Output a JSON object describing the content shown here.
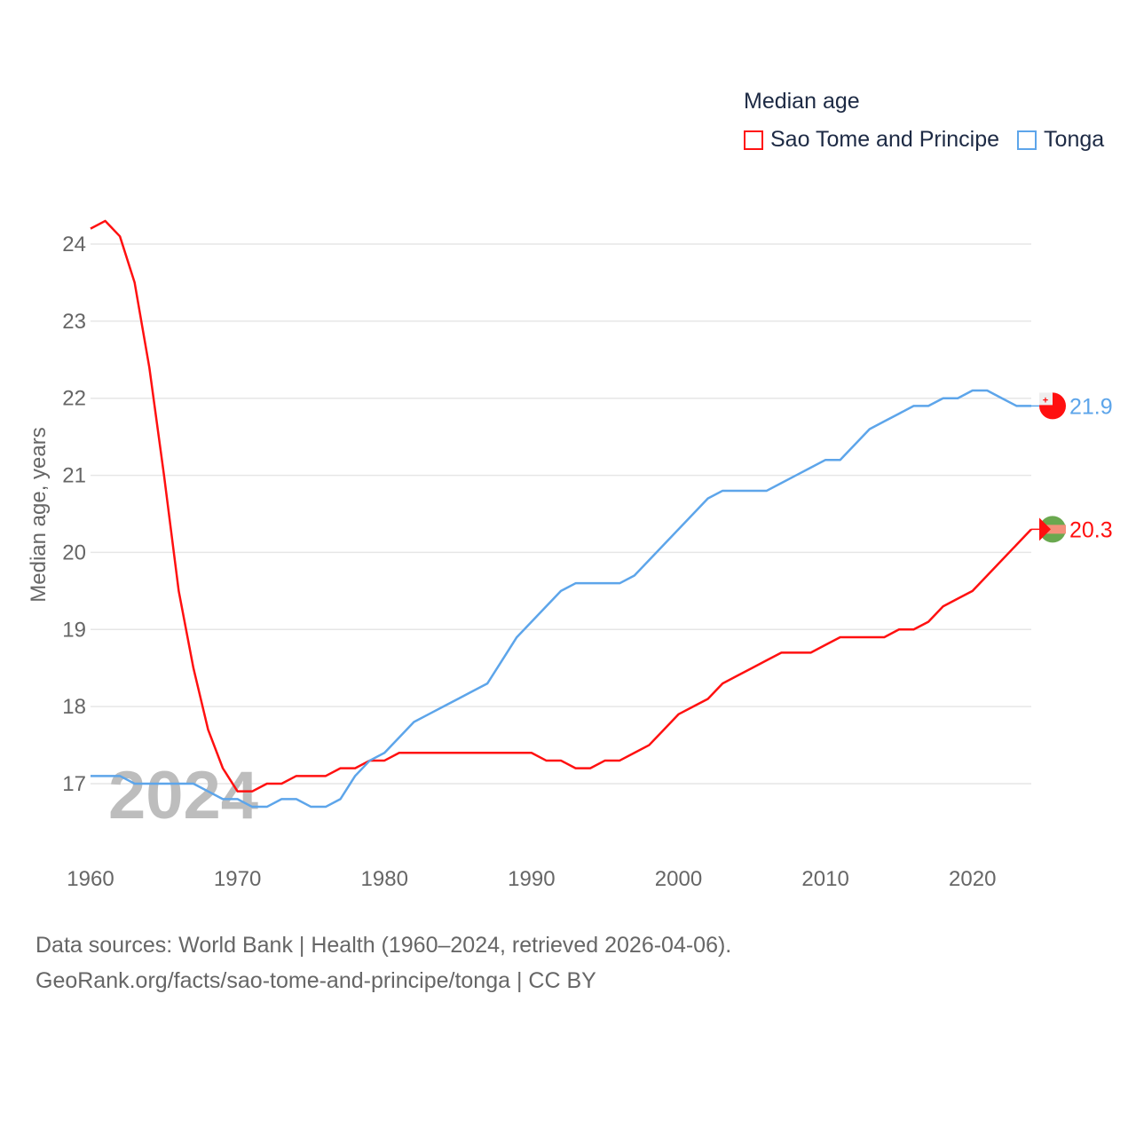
{
  "legend": {
    "title": "Median age",
    "items": [
      {
        "label": "Sao Tome and Principe",
        "color": "#ff1010"
      },
      {
        "label": "Tonga",
        "color": "#5da5ea"
      }
    ]
  },
  "watermark_year": "2024",
  "source": {
    "line1": "Data sources: World Bank | Health (1960–2024, retrieved 2026-04-06).",
    "line2": "GeoRank.org/facts/sao-tome-and-principe/tonga | CC BY"
  },
  "chart_data": {
    "type": "line",
    "title": "Median age",
    "xlabel": "",
    "ylabel": "Median age, years",
    "xlim": [
      1960,
      2024
    ],
    "ylim": [
      16.5,
      24.3
    ],
    "xticks": [
      1960,
      1970,
      1980,
      1990,
      2000,
      2010,
      2020
    ],
    "yticks": [
      17,
      18,
      19,
      20,
      21,
      22,
      23,
      24
    ],
    "grid": true,
    "legend_position": "top-right",
    "x": [
      1960,
      1961,
      1962,
      1963,
      1964,
      1965,
      1966,
      1967,
      1968,
      1969,
      1970,
      1971,
      1972,
      1973,
      1974,
      1975,
      1976,
      1977,
      1978,
      1979,
      1980,
      1981,
      1982,
      1983,
      1984,
      1985,
      1986,
      1987,
      1988,
      1989,
      1990,
      1991,
      1992,
      1993,
      1994,
      1995,
      1996,
      1997,
      1998,
      1999,
      2000,
      2001,
      2002,
      2003,
      2004,
      2005,
      2006,
      2007,
      2008,
      2009,
      2010,
      2011,
      2012,
      2013,
      2014,
      2015,
      2016,
      2017,
      2018,
      2019,
      2020,
      2021,
      2022,
      2023,
      2024
    ],
    "series": [
      {
        "name": "Sao Tome and Principe",
        "color": "#ff1010",
        "end_label": "20.3",
        "values": [
          24.2,
          24.3,
          24.1,
          23.5,
          22.4,
          21.0,
          19.5,
          18.5,
          17.7,
          17.2,
          16.9,
          16.9,
          17.0,
          17.0,
          17.1,
          17.1,
          17.1,
          17.2,
          17.2,
          17.3,
          17.3,
          17.4,
          17.4,
          17.4,
          17.4,
          17.4,
          17.4,
          17.4,
          17.4,
          17.4,
          17.4,
          17.3,
          17.3,
          17.2,
          17.2,
          17.3,
          17.3,
          17.4,
          17.5,
          17.7,
          17.9,
          18.0,
          18.1,
          18.3,
          18.4,
          18.5,
          18.6,
          18.7,
          18.7,
          18.7,
          18.8,
          18.9,
          18.9,
          18.9,
          18.9,
          19.0,
          19.0,
          19.1,
          19.3,
          19.4,
          19.5,
          19.7,
          19.9,
          20.1,
          20.3
        ]
      },
      {
        "name": "Tonga",
        "color": "#5da5ea",
        "end_label": "21.9",
        "values": [
          17.1,
          17.1,
          17.1,
          17.0,
          17.0,
          17.0,
          17.0,
          17.0,
          16.9,
          16.8,
          16.8,
          16.7,
          16.7,
          16.8,
          16.8,
          16.7,
          16.7,
          16.8,
          17.1,
          17.3,
          17.4,
          17.6,
          17.8,
          17.9,
          18.0,
          18.1,
          18.2,
          18.3,
          18.6,
          18.9,
          19.1,
          19.3,
          19.5,
          19.6,
          19.6,
          19.6,
          19.6,
          19.7,
          19.9,
          20.1,
          20.3,
          20.5,
          20.7,
          20.8,
          20.8,
          20.8,
          20.8,
          20.9,
          21.0,
          21.1,
          21.2,
          21.2,
          21.4,
          21.6,
          21.7,
          21.8,
          21.9,
          21.9,
          22.0,
          22.0,
          22.1,
          22.1,
          22.0,
          21.9,
          21.9
        ]
      }
    ]
  }
}
